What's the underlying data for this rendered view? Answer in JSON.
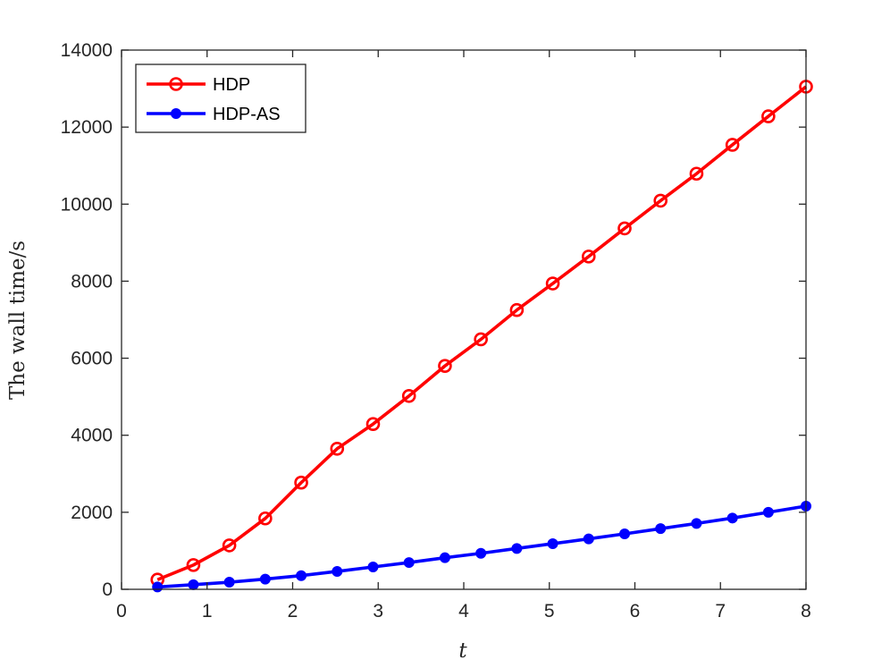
{
  "chart_data": {
    "type": "line",
    "title": "",
    "xlabel": "t",
    "ylabel": "The wall time/s",
    "xlim": [
      0,
      8
    ],
    "ylim": [
      0,
      14000
    ],
    "xticks": [
      "0",
      "1",
      "2",
      "3",
      "4",
      "5",
      "6",
      "7",
      "8"
    ],
    "yticks": [
      "0",
      "2000",
      "4000",
      "6000",
      "8000",
      "10000",
      "12000",
      "14000"
    ],
    "grid": false,
    "legend_position": "top-left",
    "series": [
      {
        "name": "HDP",
        "color": "#ff0000",
        "marker": "open-circle",
        "x": [
          0.42,
          0.84,
          1.26,
          1.68,
          2.1,
          2.52,
          2.94,
          3.36,
          3.78,
          4.2,
          4.62,
          5.04,
          5.46,
          5.88,
          6.3,
          6.72,
          7.14,
          7.56,
          8.0
        ],
        "y": [
          250,
          630,
          1140,
          1840,
          2770,
          3650,
          4290,
          5020,
          5800,
          6490,
          7250,
          7940,
          8640,
          9370,
          10090,
          10790,
          11540,
          12280,
          13050
        ]
      },
      {
        "name": "HDP-AS",
        "color": "#0000ff",
        "marker": "filled-circle",
        "x": [
          0.42,
          0.84,
          1.26,
          1.68,
          2.1,
          2.52,
          2.94,
          3.36,
          3.78,
          4.2,
          4.62,
          5.04,
          5.46,
          5.88,
          6.3,
          6.72,
          7.14,
          7.56,
          8.0
        ],
        "y": [
          60,
          120,
          185,
          265,
          355,
          465,
          580,
          695,
          820,
          935,
          1060,
          1185,
          1310,
          1440,
          1575,
          1710,
          1850,
          2000,
          2160
        ]
      }
    ]
  }
}
